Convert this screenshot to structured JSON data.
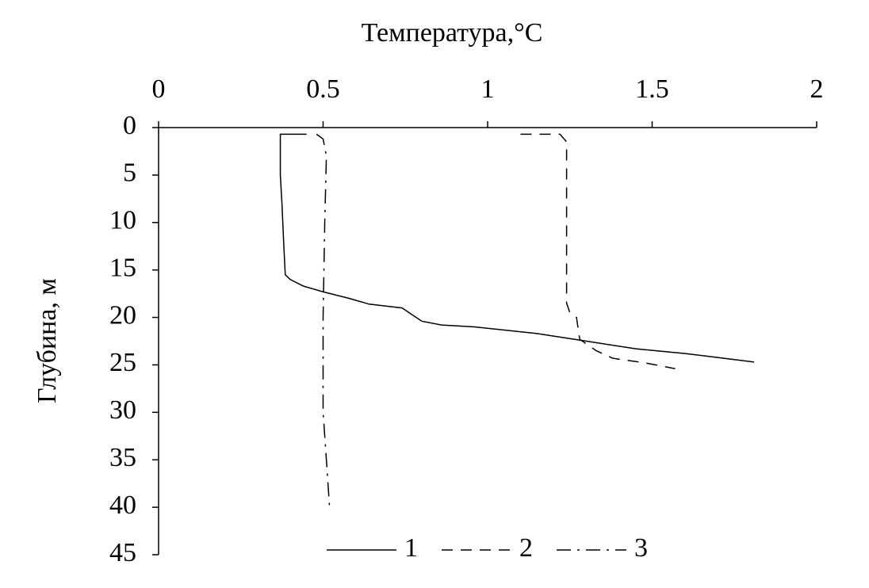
{
  "chart_data": {
    "type": "line",
    "xlabel": "Температура,°C",
    "ylabel": "Глубина, м",
    "xlim": [
      0,
      2
    ],
    "xticks": [
      0,
      0.5,
      1,
      1.5,
      2
    ],
    "ylim": [
      0,
      45
    ],
    "yticks": [
      0,
      5,
      10,
      15,
      20,
      25,
      30,
      35,
      40,
      45
    ],
    "invert_y": true,
    "x_axis_position": "top",
    "legend": "bottom",
    "series": [
      {
        "name": "1",
        "color": "#000000",
        "style": "solid",
        "x": [
          0.45,
          0.37,
          0.37,
          0.375,
          0.38,
          0.385,
          0.4,
          0.44,
          0.5,
          0.58,
          0.64,
          0.74,
          0.77,
          0.8,
          0.86,
          0.96,
          1.15,
          1.3,
          1.45,
          1.6,
          1.81
        ],
        "values": [
          0.7,
          0.7,
          5,
          8,
          12,
          15.5,
          16,
          16.7,
          17.3,
          18,
          18.6,
          19,
          19.7,
          20.4,
          20.8,
          21,
          21.7,
          22.5,
          23.3,
          23.8,
          24.7
        ]
      },
      {
        "name": "2",
        "color": "#000000",
        "style": "dashed",
        "x": [
          1.1,
          1.22,
          1.24,
          1.24,
          1.24,
          1.25,
          1.27,
          1.28,
          1.3,
          1.33,
          1.38,
          1.48,
          1.57
        ],
        "values": [
          0.7,
          0.7,
          1.5,
          10,
          18.5,
          19.5,
          20,
          22.3,
          22.8,
          23.5,
          24.3,
          24.8,
          25.4
        ]
      },
      {
        "name": "3",
        "color": "#000000",
        "style": "dashdot",
        "x": [
          0.48,
          0.5,
          0.51,
          0.505,
          0.5,
          0.5,
          0.51,
          0.52
        ],
        "values": [
          0.7,
          1.2,
          3,
          10,
          20,
          30,
          35,
          40.2
        ]
      }
    ]
  }
}
